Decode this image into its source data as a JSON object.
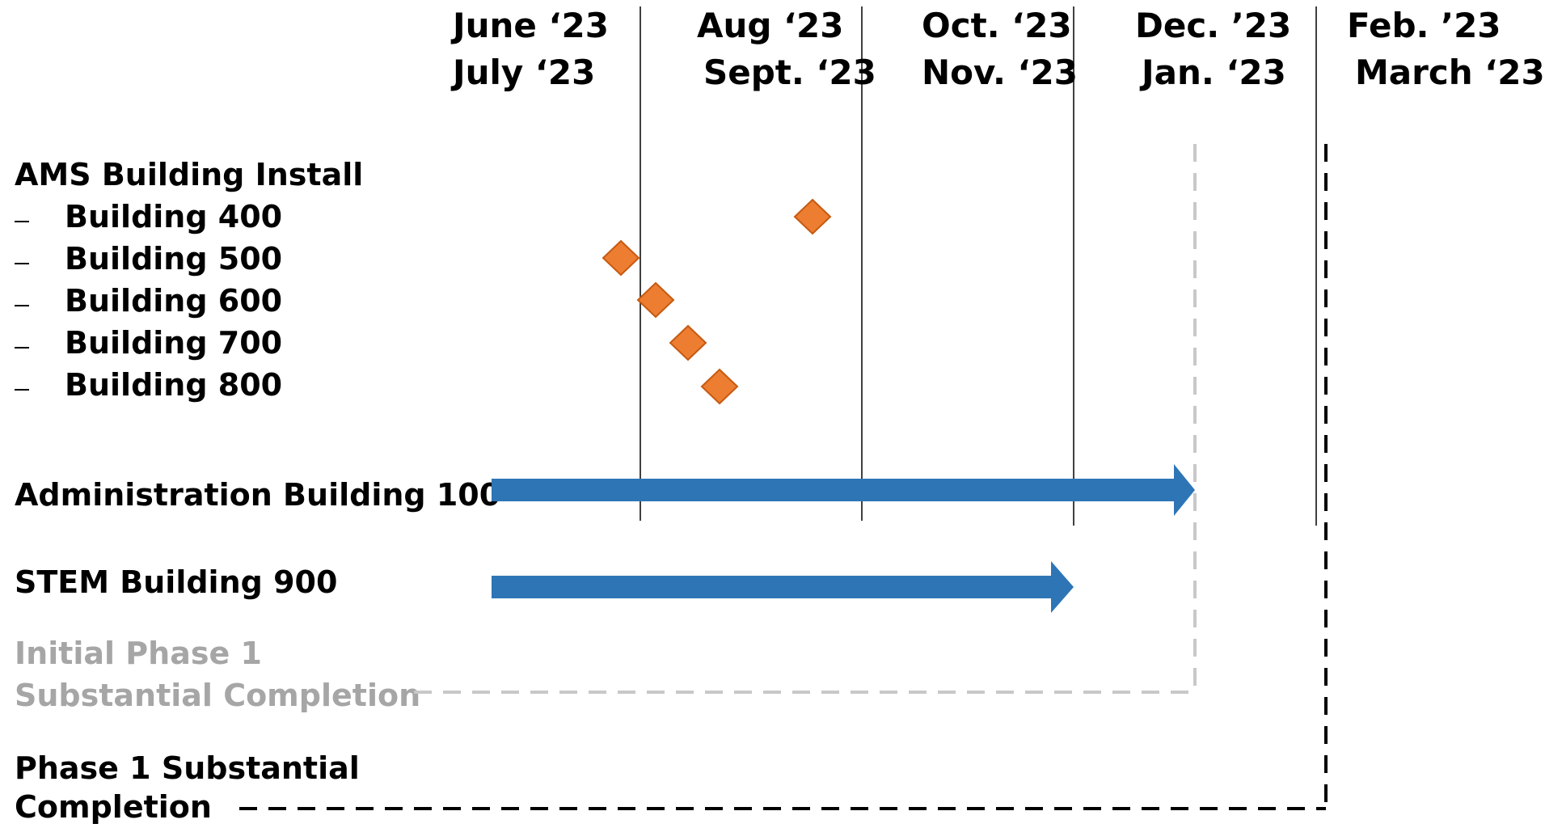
{
  "colors": {
    "diamond_fill": "#ed7d31",
    "diamond_stroke": "#c55a11",
    "arrow": "#2e75b6",
    "muted_text": "#a6a6a6",
    "muted_dash": "#c8c8c8",
    "text": "#000000"
  },
  "headers": [
    {
      "line1": "June ‘23",
      "line2": "July ‘23"
    },
    {
      "line1": "Aug ‘23",
      "line2": "Sept. ‘23"
    },
    {
      "line1": "Oct. ‘23",
      "line2": "Nov. ‘23"
    },
    {
      "line1": "Dec. ’23",
      "line2": "Jan. ‘23"
    },
    {
      "line1": "Feb. ’23",
      "line2": "March ‘23"
    }
  ],
  "ams": {
    "title": "AMS Building Install",
    "items": [
      {
        "bullet": "-",
        "label": "Building 400"
      },
      {
        "bullet": "-",
        "label": "Building 500"
      },
      {
        "bullet": "-",
        "label": "Building 600"
      },
      {
        "bullet": "-",
        "label": "Building 700"
      },
      {
        "bullet": "-",
        "label": "Building 800"
      }
    ]
  },
  "rows": {
    "admin": "Administration Building 100",
    "stem": "STEM Building 900",
    "initial_line1": "Initial Phase 1",
    "initial_line2": "Substantial Completion",
    "phase1_line1": "Phase 1 Substantial",
    "phase1_line2": "Completion"
  }
}
